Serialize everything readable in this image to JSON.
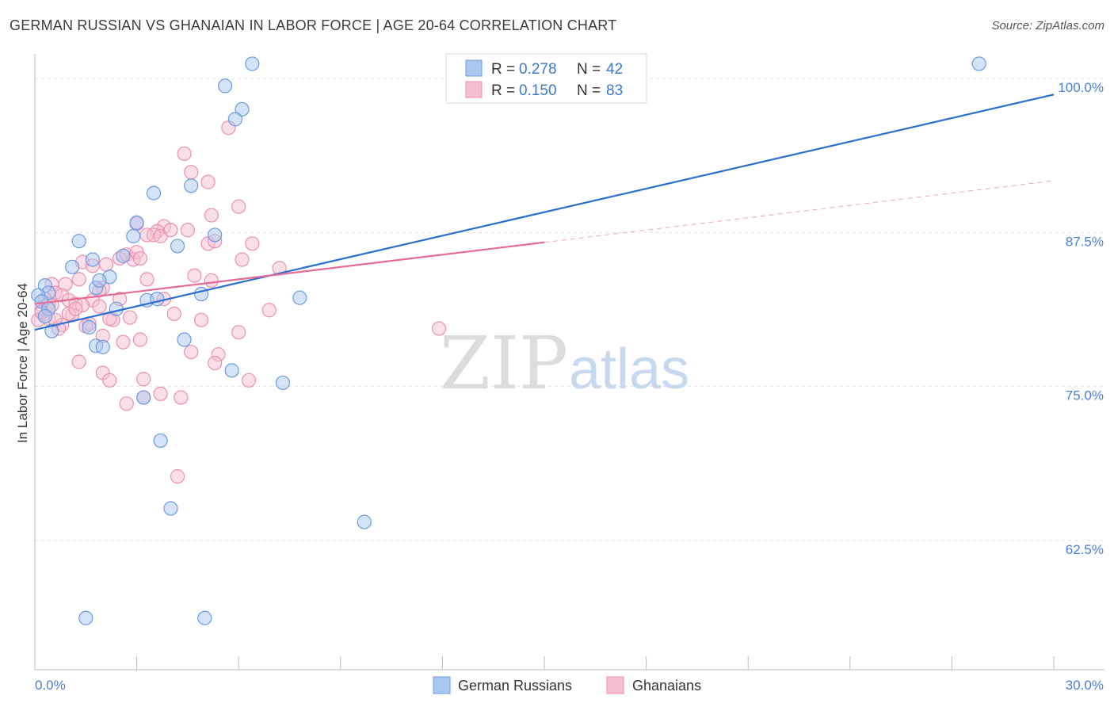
{
  "title": "GERMAN RUSSIAN VS GHANAIAN IN LABOR FORCE | AGE 20-64 CORRELATION CHART",
  "source": "Source: ZipAtlas.com",
  "watermark": {
    "zip": "ZIP",
    "atlas": "atlas"
  },
  "colors": {
    "blue": "#6a9be0",
    "blue_fill": "#aac7f0",
    "blue_line": "#2a6fd0",
    "pink": "#ea8fb0",
    "pink_fill": "#f5bfd1",
    "pink_line": "#e46b97",
    "axis_text": "#4a7fd4"
  },
  "chart_data": {
    "type": "scatter",
    "ylabel": "In Labor Force | Age 20-64",
    "xlim": [
      0,
      30
    ],
    "ylim": [
      52,
      102
    ],
    "x_tick_labels": [
      "0.0%",
      "30.0%"
    ],
    "y_ticks": [
      {
        "value": 62.5,
        "label": "62.5%"
      },
      {
        "value": 75.0,
        "label": "75.0%"
      },
      {
        "value": 87.5,
        "label": "87.5%"
      },
      {
        "value": 100.0,
        "label": "100.0%"
      }
    ],
    "legend": [
      {
        "r_label": "R =",
        "r": "0.278",
        "n_label": "N =",
        "n": "42"
      },
      {
        "r_label": "R =",
        "r": "0.150",
        "n_label": "N =",
        "n": "83"
      }
    ],
    "series": [
      {
        "name": "German Russians",
        "trend": {
          "x0": 0,
          "y0": 79.6,
          "x1": 30,
          "y1": 98.7
        },
        "points": [
          [
            6.4,
            101.2
          ],
          [
            27.8,
            101.2
          ],
          [
            5.6,
            99.4
          ],
          [
            6.1,
            97.5
          ],
          [
            5.9,
            96.7
          ],
          [
            3.5,
            90.7
          ],
          [
            4.6,
            91.3
          ],
          [
            3.0,
            88.3
          ],
          [
            1.3,
            86.8
          ],
          [
            2.9,
            87.2
          ],
          [
            5.3,
            87.3
          ],
          [
            4.2,
            86.4
          ],
          [
            1.7,
            85.3
          ],
          [
            2.6,
            85.6
          ],
          [
            1.1,
            84.7
          ],
          [
            0.3,
            83.2
          ],
          [
            2.2,
            83.9
          ],
          [
            1.8,
            83.0
          ],
          [
            1.9,
            83.6
          ],
          [
            0.4,
            82.6
          ],
          [
            0.1,
            82.4
          ],
          [
            0.2,
            81.9
          ],
          [
            0.4,
            81.3
          ],
          [
            3.3,
            82.0
          ],
          [
            3.6,
            82.1
          ],
          [
            4.9,
            82.5
          ],
          [
            7.8,
            82.2
          ],
          [
            0.3,
            80.7
          ],
          [
            1.6,
            79.8
          ],
          [
            0.5,
            79.5
          ],
          [
            2.4,
            81.3
          ],
          [
            4.4,
            78.8
          ],
          [
            1.8,
            78.3
          ],
          [
            2.0,
            78.2
          ],
          [
            5.8,
            76.3
          ],
          [
            7.3,
            75.3
          ],
          [
            3.2,
            74.1
          ],
          [
            3.7,
            70.6
          ],
          [
            4.0,
            65.1
          ],
          [
            9.7,
            64.0
          ],
          [
            1.5,
            56.2
          ],
          [
            5.0,
            56.2
          ]
        ]
      },
      {
        "name": "Ghanaians",
        "trend": {
          "x0": 0,
          "y0": 81.7,
          "x1": 15,
          "y1": 86.7
        },
        "trend_ext": {
          "x0": 15,
          "y0": 86.7,
          "x1": 30,
          "y1": 91.7
        },
        "points": [
          [
            5.7,
            96.0
          ],
          [
            4.4,
            93.9
          ],
          [
            4.6,
            92.4
          ],
          [
            5.1,
            91.6
          ],
          [
            6.0,
            89.6
          ],
          [
            5.2,
            88.9
          ],
          [
            3.8,
            88.0
          ],
          [
            3.6,
            87.6
          ],
          [
            3.3,
            87.3
          ],
          [
            3.5,
            87.3
          ],
          [
            3.7,
            87.2
          ],
          [
            4.5,
            87.7
          ],
          [
            5.1,
            86.6
          ],
          [
            5.3,
            86.8
          ],
          [
            6.4,
            86.6
          ],
          [
            2.5,
            85.4
          ],
          [
            2.7,
            85.7
          ],
          [
            2.9,
            85.3
          ],
          [
            3.0,
            85.9
          ],
          [
            3.1,
            85.4
          ],
          [
            6.1,
            85.3
          ],
          [
            1.4,
            85.1
          ],
          [
            2.1,
            84.9
          ],
          [
            7.2,
            84.6
          ],
          [
            1.7,
            84.8
          ],
          [
            4.7,
            84.0
          ],
          [
            5.2,
            83.6
          ],
          [
            3.3,
            83.7
          ],
          [
            1.3,
            83.7
          ],
          [
            0.9,
            83.3
          ],
          [
            0.5,
            83.3
          ],
          [
            0.6,
            82.6
          ],
          [
            2.0,
            83.0
          ],
          [
            1.9,
            82.8
          ],
          [
            0.8,
            82.4
          ],
          [
            0.3,
            82.1
          ],
          [
            0.4,
            81.7
          ],
          [
            1.0,
            82.0
          ],
          [
            1.7,
            82.0
          ],
          [
            2.5,
            82.1
          ],
          [
            3.8,
            82.1
          ],
          [
            1.2,
            81.7
          ],
          [
            1.9,
            81.5
          ],
          [
            0.5,
            81.6
          ],
          [
            1.4,
            81.6
          ],
          [
            0.2,
            81.1
          ],
          [
            6.9,
            81.2
          ],
          [
            0.1,
            80.4
          ],
          [
            0.2,
            81.0
          ],
          [
            0.4,
            80.5
          ],
          [
            2.3,
            80.4
          ],
          [
            4.9,
            80.4
          ],
          [
            0.8,
            80.0
          ],
          [
            1.6,
            80.1
          ],
          [
            11.9,
            79.7
          ],
          [
            2.0,
            79.1
          ],
          [
            2.6,
            78.6
          ],
          [
            3.1,
            78.8
          ],
          [
            4.6,
            77.8
          ],
          [
            5.4,
            77.6
          ],
          [
            5.3,
            76.9
          ],
          [
            1.3,
            77.0
          ],
          [
            2.0,
            76.1
          ],
          [
            2.2,
            75.5
          ],
          [
            3.2,
            75.6
          ],
          [
            3.7,
            74.4
          ],
          [
            4.3,
            74.1
          ],
          [
            6.3,
            75.5
          ],
          [
            2.7,
            73.6
          ],
          [
            3.2,
            74.1
          ],
          [
            4.2,
            67.7
          ],
          [
            3.0,
            88.2
          ],
          [
            4.0,
            87.7
          ],
          [
            6.0,
            79.4
          ],
          [
            2.2,
            80.5
          ],
          [
            1.1,
            80.8
          ],
          [
            0.7,
            79.7
          ],
          [
            1.5,
            79.9
          ],
          [
            2.8,
            80.6
          ],
          [
            4.1,
            80.9
          ],
          [
            0.6,
            80.4
          ],
          [
            1.0,
            80.9
          ],
          [
            1.2,
            81.3
          ]
        ]
      }
    ]
  },
  "bottom_legend": {
    "blue_label": "German Russians",
    "pink_label": "Ghanaians"
  }
}
